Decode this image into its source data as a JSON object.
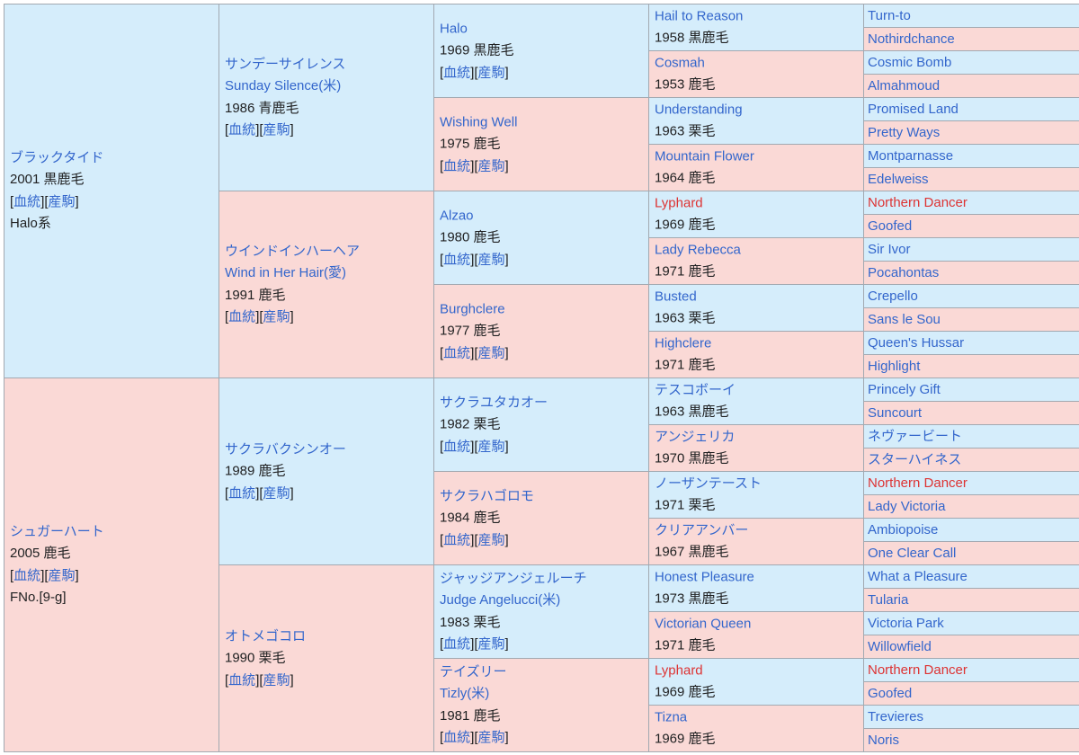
{
  "pedigree": {
    "gen1": [
      {
        "sex": "male",
        "name": "ブラックタイド",
        "info": "2001 黒鹿毛",
        "link1": "血統",
        "link2": "産駒",
        "note": "Halo系"
      },
      {
        "sex": "female",
        "name": "シュガーハート",
        "info": "2005 鹿毛",
        "link1": "血統",
        "link2": "産駒",
        "note": "FNo.[9-g]"
      }
    ],
    "gen2": [
      {
        "sex": "male",
        "name": "サンデーサイレンス",
        "name2": "Sunday Silence(米)",
        "info": "1986 青鹿毛",
        "link1": "血統",
        "link2": "産駒"
      },
      {
        "sex": "female",
        "name": "ウインドインハーヘア",
        "name2": "Wind in Her Hair(愛)",
        "info": "1991 鹿毛",
        "link1": "血統",
        "link2": "産駒"
      },
      {
        "sex": "male",
        "name": "サクラバクシンオー",
        "info": "1989 鹿毛",
        "link1": "血統",
        "link2": "産駒"
      },
      {
        "sex": "female",
        "name": "オトメゴコロ",
        "info": "1990 栗毛",
        "link1": "血統",
        "link2": "産駒"
      }
    ],
    "gen3": [
      {
        "sex": "male",
        "name": "Halo",
        "info": "1969 黒鹿毛",
        "link1": "血統",
        "link2": "産駒"
      },
      {
        "sex": "female",
        "name": "Wishing Well",
        "info": "1975 鹿毛",
        "link1": "血統",
        "link2": "産駒"
      },
      {
        "sex": "male",
        "name": "Alzao",
        "info": "1980 鹿毛",
        "link1": "血統",
        "link2": "産駒"
      },
      {
        "sex": "female",
        "name": "Burghclere",
        "info": "1977 鹿毛",
        "link1": "血統",
        "link2": "産駒"
      },
      {
        "sex": "male",
        "name": "サクラユタカオー",
        "info": "1982 栗毛",
        "link1": "血統",
        "link2": "産駒"
      },
      {
        "sex": "female",
        "name": "サクラハゴロモ",
        "info": "1984 鹿毛",
        "link1": "血統",
        "link2": "産駒"
      },
      {
        "sex": "male",
        "name": "ジャッジアンジェルーチ",
        "name2": "Judge Angelucci(米)",
        "info": "1983 栗毛",
        "link1": "血統",
        "link2": "産駒"
      },
      {
        "sex": "female",
        "name": "テイズリー",
        "name2": "Tizly(米)",
        "info": "1981 鹿毛",
        "link1": "血統",
        "link2": "産駒"
      }
    ],
    "gen4": [
      {
        "sex": "male",
        "name": "Hail to Reason",
        "info": "1958 黒鹿毛"
      },
      {
        "sex": "female",
        "name": "Cosmah",
        "info": "1953 鹿毛"
      },
      {
        "sex": "male",
        "name": "Understanding",
        "info": "1963 栗毛"
      },
      {
        "sex": "female",
        "name": "Mountain Flower",
        "info": "1964 鹿毛"
      },
      {
        "sex": "male",
        "name": "Lyphard",
        "info": "1969 鹿毛",
        "cross": true
      },
      {
        "sex": "female",
        "name": "Lady Rebecca",
        "info": "1971 鹿毛"
      },
      {
        "sex": "male",
        "name": "Busted",
        "info": "1963 栗毛"
      },
      {
        "sex": "female",
        "name": "Highclere",
        "info": "1971 鹿毛"
      },
      {
        "sex": "male",
        "name": "テスコボーイ",
        "info": "1963 黒鹿毛"
      },
      {
        "sex": "female",
        "name": "アンジェリカ",
        "info": "1970 黒鹿毛"
      },
      {
        "sex": "male",
        "name": "ノーザンテースト",
        "info": "1971 栗毛"
      },
      {
        "sex": "female",
        "name": "クリアアンバー",
        "info": "1967 黒鹿毛"
      },
      {
        "sex": "male",
        "name": "Honest Pleasure",
        "info": "1973 黒鹿毛"
      },
      {
        "sex": "female",
        "name": "Victorian Queen",
        "info": "1971 鹿毛"
      },
      {
        "sex": "male",
        "name": "Lyphard",
        "info": "1969 鹿毛",
        "cross": true
      },
      {
        "sex": "female",
        "name": "Tizna",
        "info": "1969 鹿毛"
      }
    ],
    "gen5": [
      {
        "sex": "male",
        "name": "Turn-to"
      },
      {
        "sex": "female",
        "name": "Nothirdchance"
      },
      {
        "sex": "male",
        "name": "Cosmic Bomb"
      },
      {
        "sex": "female",
        "name": "Almahmoud"
      },
      {
        "sex": "male",
        "name": "Promised Land"
      },
      {
        "sex": "female",
        "name": "Pretty Ways"
      },
      {
        "sex": "male",
        "name": "Montparnasse"
      },
      {
        "sex": "female",
        "name": "Edelweiss"
      },
      {
        "sex": "male",
        "name": "Northern Dancer",
        "cross": true
      },
      {
        "sex": "female",
        "name": "Goofed"
      },
      {
        "sex": "male",
        "name": "Sir Ivor"
      },
      {
        "sex": "female",
        "name": "Pocahontas"
      },
      {
        "sex": "male",
        "name": "Crepello"
      },
      {
        "sex": "female",
        "name": "Sans le Sou"
      },
      {
        "sex": "male",
        "name": "Queen's Hussar"
      },
      {
        "sex": "female",
        "name": "Highlight"
      },
      {
        "sex": "male",
        "name": "Princely Gift"
      },
      {
        "sex": "female",
        "name": "Suncourt"
      },
      {
        "sex": "male",
        "name": "ネヴァービート"
      },
      {
        "sex": "female",
        "name": "スターハイネス"
      },
      {
        "sex": "male",
        "name": "Northern Dancer",
        "cross": true
      },
      {
        "sex": "female",
        "name": "Lady Victoria"
      },
      {
        "sex": "male",
        "name": "Ambiopoise"
      },
      {
        "sex": "female",
        "name": "One Clear Call"
      },
      {
        "sex": "male",
        "name": "What a Pleasure"
      },
      {
        "sex": "female",
        "name": "Tularia"
      },
      {
        "sex": "male",
        "name": "Victoria Park"
      },
      {
        "sex": "female",
        "name": "Willowfield"
      },
      {
        "sex": "male",
        "name": "Northern Dancer",
        "cross": true
      },
      {
        "sex": "female",
        "name": "Goofed"
      },
      {
        "sex": "male",
        "name": "Trevieres"
      },
      {
        "sex": "female",
        "name": "Noris"
      }
    ]
  },
  "colors": {
    "male_bg": "#d5edfb",
    "female_bg": "#fad9d6",
    "border": "#a2a9b1",
    "link": "#3366cc",
    "cross_link": "#dd3333"
  }
}
